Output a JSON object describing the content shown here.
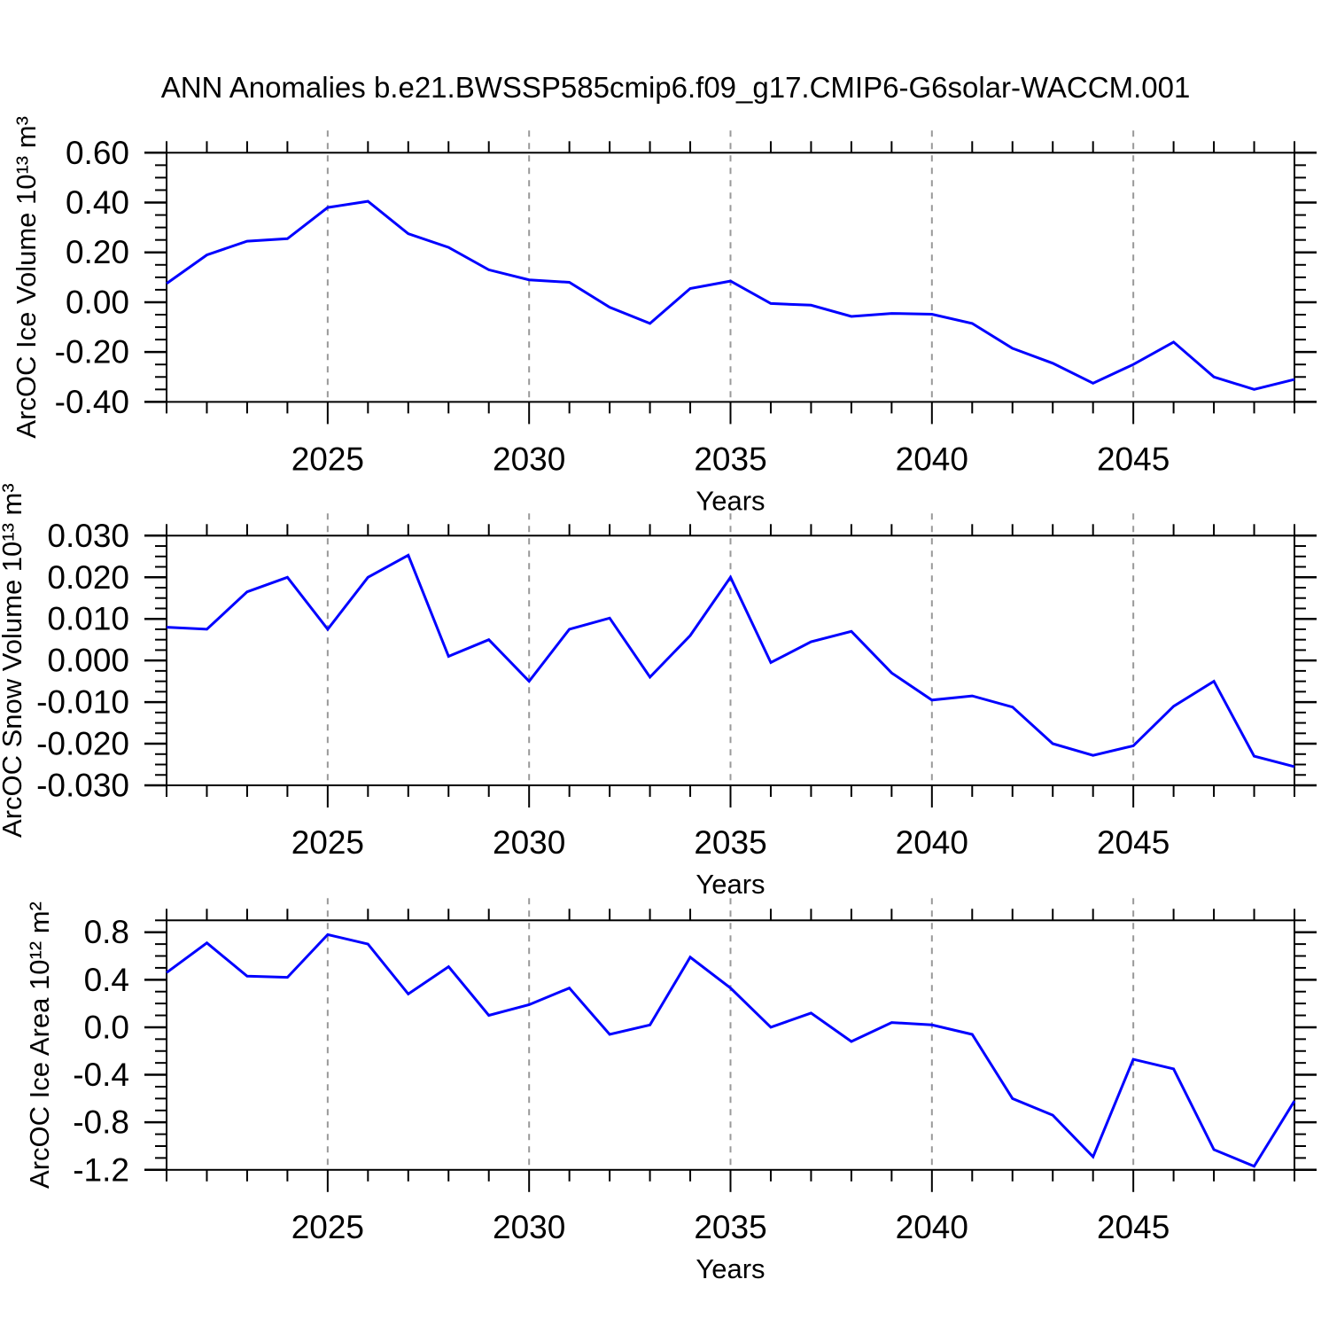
{
  "title": "ANN Anomalies b.e21.BWSSP585cmip6.f09_g17.CMIP6-G6solar-WACCM.001",
  "colors": {
    "line": "#0000ff",
    "grid": "#999999",
    "axis": "#000000"
  },
  "chart_data": [
    {
      "type": "line",
      "name": "ice-volume",
      "ylabel": "ArcOC Ice Volume 10¹³ m³",
      "xlabel": "Years",
      "x": [
        2021,
        2022,
        2023,
        2024,
        2025,
        2026,
        2027,
        2028,
        2029,
        2030,
        2031,
        2032,
        2033,
        2034,
        2035,
        2036,
        2037,
        2038,
        2039,
        2040,
        2041,
        2042,
        2043,
        2044,
        2045,
        2046,
        2047,
        2048,
        2049
      ],
      "values": [
        0.075,
        0.19,
        0.245,
        0.255,
        0.38,
        0.405,
        0.275,
        0.22,
        0.13,
        0.09,
        0.08,
        -0.02,
        -0.085,
        0.055,
        0.085,
        -0.005,
        -0.012,
        -0.057,
        -0.045,
        -0.048,
        -0.085,
        -0.185,
        -0.245,
        -0.325,
        -0.25,
        -0.16,
        -0.3,
        -0.35,
        -0.31
      ],
      "ylim": [
        -0.4,
        0.6
      ],
      "yticks": [
        {
          "v": 0.6,
          "label": "0.60"
        },
        {
          "v": 0.4,
          "label": "0.40"
        },
        {
          "v": 0.2,
          "label": "0.20"
        },
        {
          "v": 0.0,
          "label": "0.00"
        },
        {
          "v": -0.2,
          "label": "-0.20"
        },
        {
          "v": -0.4,
          "label": "-0.40"
        }
      ],
      "ymajor_step": 0.2,
      "yminor_step": 0.05,
      "xticks": [
        2025,
        2030,
        2035,
        2040,
        2045
      ],
      "grid": "vertical-dashed-at-major-xticks",
      "legend": "none"
    },
    {
      "type": "line",
      "name": "snow-volume",
      "ylabel": "ArcOC Snow Volume 10¹³ m³",
      "xlabel": "Years",
      "x": [
        2021,
        2022,
        2023,
        2024,
        2025,
        2026,
        2027,
        2028,
        2029,
        2030,
        2031,
        2032,
        2033,
        2034,
        2035,
        2036,
        2037,
        2038,
        2039,
        2040,
        2041,
        2042,
        2043,
        2044,
        2045,
        2046,
        2047,
        2048,
        2049
      ],
      "values": [
        0.008,
        0.0075,
        0.0165,
        0.02,
        0.0075,
        0.02,
        0.0253,
        0.001,
        0.005,
        -0.005,
        0.0075,
        0.0102,
        -0.004,
        0.006,
        0.02,
        -0.0005,
        0.0045,
        0.007,
        -0.003,
        -0.0095,
        -0.0085,
        -0.0112,
        -0.02,
        -0.0228,
        -0.0205,
        -0.011,
        -0.005,
        -0.023,
        -0.0255
      ],
      "ylim": [
        -0.03,
        0.03
      ],
      "yticks": [
        {
          "v": 0.03,
          "label": "0.030"
        },
        {
          "v": 0.02,
          "label": "0.020"
        },
        {
          "v": 0.01,
          "label": "0.010"
        },
        {
          "v": 0.0,
          "label": "0.000"
        },
        {
          "v": -0.01,
          "label": "-0.010"
        },
        {
          "v": -0.02,
          "label": "-0.020"
        },
        {
          "v": -0.03,
          "label": "-0.030"
        }
      ],
      "ymajor_step": 0.01,
      "yminor_step": 0.0025,
      "xticks": [
        2025,
        2030,
        2035,
        2040,
        2045
      ],
      "grid": "vertical-dashed-at-major-xticks",
      "legend": "none"
    },
    {
      "type": "line",
      "name": "ice-area",
      "ylabel": "ArcOC Ice Area 10¹² m²",
      "xlabel": "Years",
      "x": [
        2021,
        2022,
        2023,
        2024,
        2025,
        2026,
        2027,
        2028,
        2029,
        2030,
        2031,
        2032,
        2033,
        2034,
        2035,
        2036,
        2037,
        2038,
        2039,
        2040,
        2041,
        2042,
        2043,
        2044,
        2045,
        2046,
        2047,
        2048,
        2049
      ],
      "values": [
        0.46,
        0.71,
        0.43,
        0.42,
        0.78,
        0.7,
        0.28,
        0.51,
        0.1,
        0.19,
        0.33,
        -0.06,
        0.02,
        0.59,
        0.33,
        0.0,
        0.12,
        -0.12,
        0.04,
        0.02,
        -0.06,
        -0.6,
        -0.74,
        -1.09,
        -0.27,
        -0.35,
        -1.03,
        -1.17,
        -0.62
      ],
      "ylim": [
        -1.2,
        0.9
      ],
      "yticks": [
        {
          "v": 0.8,
          "label": "0.8"
        },
        {
          "v": 0.4,
          "label": "0.4"
        },
        {
          "v": 0.0,
          "label": "0.0"
        },
        {
          "v": -0.4,
          "label": "-0.4"
        },
        {
          "v": -0.8,
          "label": "-0.8"
        },
        {
          "v": -1.2,
          "label": "-1.2"
        }
      ],
      "ymajor_step": 0.4,
      "yminor_step": 0.1,
      "xticks": [
        2025,
        2030,
        2035,
        2040,
        2045
      ],
      "grid": "vertical-dashed-at-major-xticks",
      "legend": "none"
    }
  ]
}
